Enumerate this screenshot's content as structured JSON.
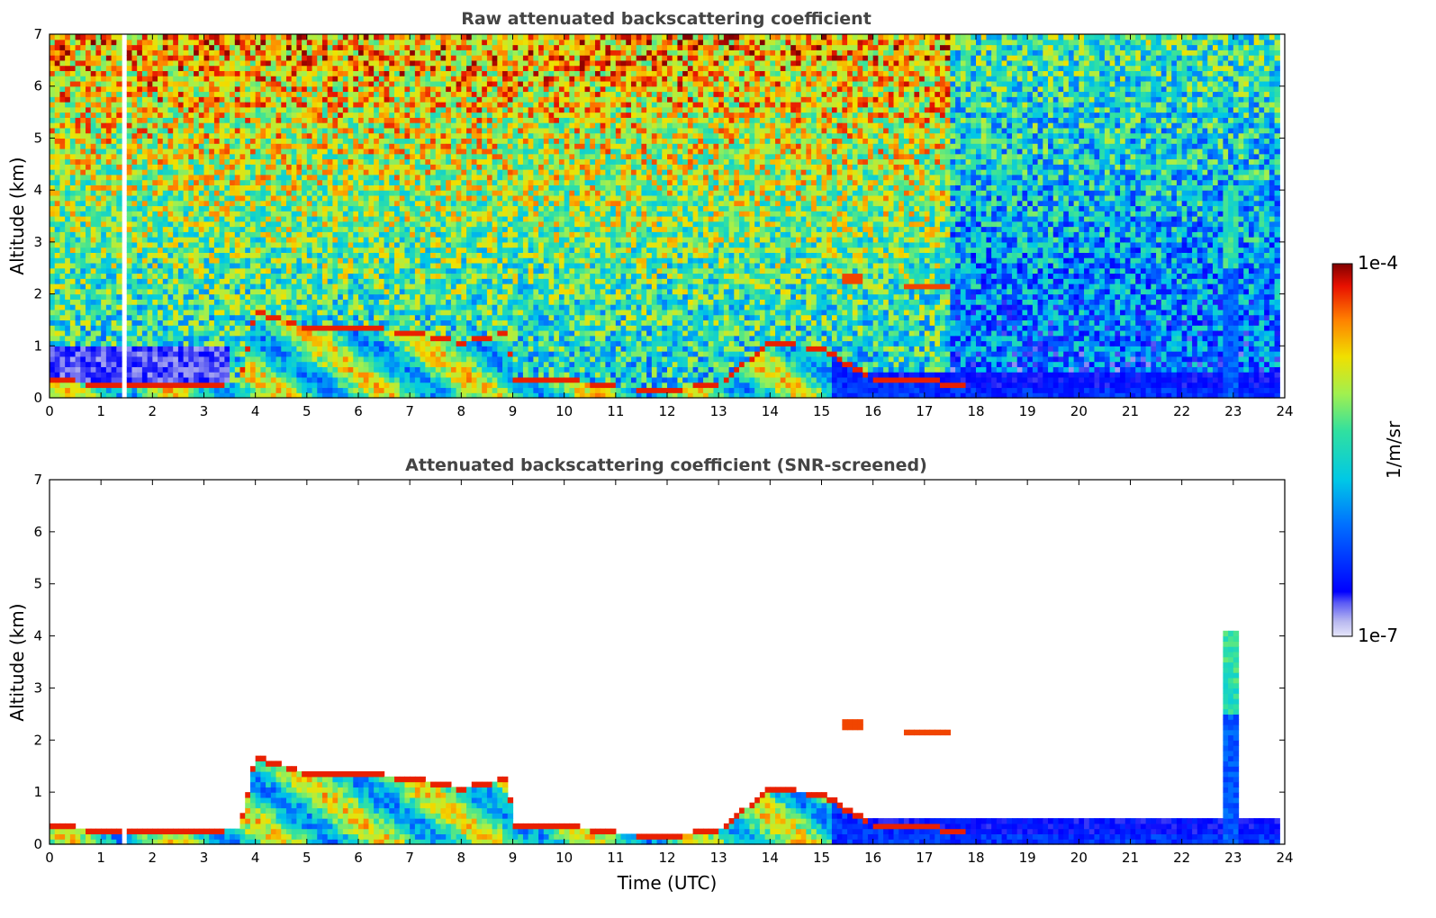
{
  "chart_data": [
    {
      "type": "heatmap",
      "title": "Raw attenuated backscattering coefficient",
      "xlabel": "",
      "ylabel": "Altitude (km)",
      "xlim": [
        0,
        24
      ],
      "ylim": [
        0,
        7
      ],
      "xticks": [
        "0",
        "1",
        "2",
        "3",
        "4",
        "5",
        "6",
        "7",
        "8",
        "9",
        "10",
        "11",
        "12",
        "13",
        "14",
        "15",
        "16",
        "17",
        "18",
        "19",
        "20",
        "21",
        "22",
        "23",
        "24"
      ],
      "yticks": [
        "0",
        "1",
        "2",
        "3",
        "4",
        "5",
        "6",
        "7"
      ],
      "features": {
        "boundary_layer_top_km": [
          [
            0,
            0.4
          ],
          [
            1,
            0.3
          ],
          [
            2,
            0.25
          ],
          [
            3,
            0.3
          ],
          [
            3.7,
            0.35
          ],
          [
            4,
            1.7
          ],
          [
            5,
            1.4
          ],
          [
            6,
            1.4
          ],
          [
            7,
            1.3
          ],
          [
            8,
            1.1
          ],
          [
            8.9,
            1.3
          ],
          [
            9,
            0.4
          ],
          [
            10,
            0.4
          ],
          [
            11,
            0.25
          ],
          [
            12,
            0.2
          ],
          [
            13,
            0.3
          ],
          [
            14,
            1.1
          ],
          [
            15,
            1.0
          ],
          [
            16,
            0.4
          ],
          [
            17,
            0.4
          ],
          [
            18,
            0.2
          ]
        ],
        "elevated_layers_km": [
          {
            "x": [
              15.4,
              15.8
            ],
            "y": 2.3
          },
          {
            "x": [
              16.6,
              17.5
            ],
            "y": 2.15
          }
        ],
        "missing_data_hours": [
          [
            1.4,
            1.55
          ]
        ],
        "noise_region_until_hour": 17.5
      }
    },
    {
      "type": "heatmap",
      "title": "Attenuated backscattering coefficient (SNR-screened)",
      "xlabel": "Time (UTC)",
      "ylabel": "Altitude (km)",
      "xlim": [
        0,
        24
      ],
      "ylim": [
        0,
        7
      ],
      "xticks": [
        "0",
        "1",
        "2",
        "3",
        "4",
        "5",
        "6",
        "7",
        "8",
        "9",
        "10",
        "11",
        "12",
        "13",
        "14",
        "15",
        "16",
        "17",
        "18",
        "19",
        "20",
        "21",
        "22",
        "23",
        "24"
      ],
      "yticks": [
        "0",
        "1",
        "2",
        "3",
        "4",
        "5",
        "6",
        "7"
      ],
      "features": {
        "convective_plume_hours": [
          22.8,
          23.1
        ],
        "plume_top_km": 4.1
      }
    }
  ],
  "colorbar": {
    "label": "1/m/sr",
    "min_label": "1e-7",
    "max_label": "1e-4",
    "colormap": "jet"
  }
}
